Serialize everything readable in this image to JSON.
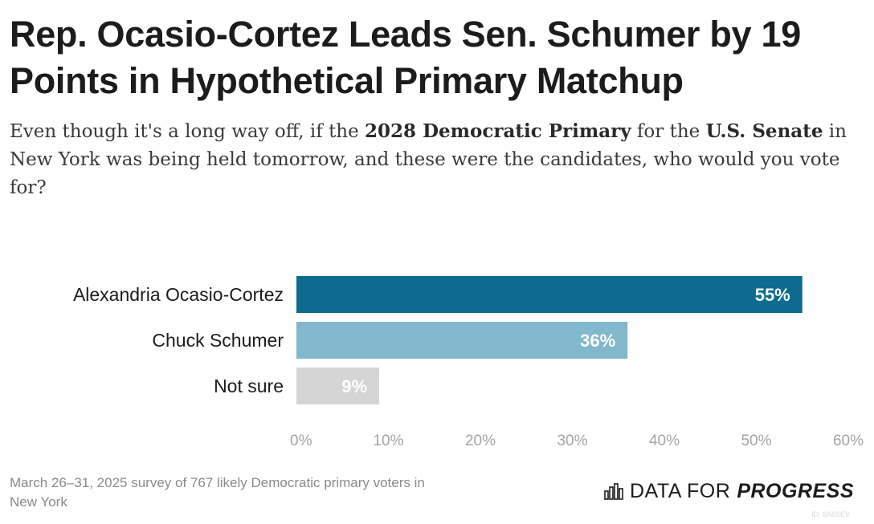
{
  "header": {
    "title": "Rep. Ocasio-Cortez Leads Sen. Schumer by 19 Points in Hypothetical Primary Matchup",
    "subtitle": {
      "part1": "Even though it's a long way off, if the ",
      "bold1": "2028 Democratic Primary",
      "part2": " for the ",
      "bold2": "U.S. Senate",
      "part3": " in New York was being held tomorrow, and these were the candidates, who would you vote for?"
    }
  },
  "chart_data": {
    "type": "bar",
    "orientation": "horizontal",
    "categories": [
      "Alexandria Ocasio-Cortez",
      "Chuck Schumer",
      "Not sure"
    ],
    "values": [
      55,
      36,
      9
    ],
    "value_labels": [
      "55%",
      "36%",
      "9%"
    ],
    "colors": [
      "#0c6b8f",
      "#82b8cb",
      "#d5d5d5"
    ],
    "label_color": "#ffffff",
    "xlim": [
      0,
      60
    ],
    "xticks": [
      0,
      10,
      20,
      30,
      40,
      50,
      60
    ],
    "xtick_labels": [
      "0%",
      "10%",
      "20%",
      "30%",
      "40%",
      "50%",
      "60%"
    ],
    "grid": false,
    "title": "",
    "xlabel": "",
    "ylabel": ""
  },
  "footer": {
    "note": "March 26–31, 2025 survey of 767 likely Democratic primary voters in New York",
    "logo_icon": "bar-chart-icon",
    "logo_light": "DATA FOR",
    "logo_bold": "PROGRESS",
    "chart_id": "ID: 8A6SEV"
  }
}
